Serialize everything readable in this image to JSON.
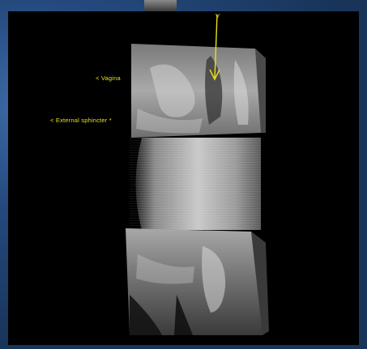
{
  "labels": {
    "vagina": "< Vagina",
    "external_sphincter": "< External sphincter *",
    "arrow_tip": "V"
  },
  "colors": {
    "annotation": "#e6e21a",
    "viewer_background": "#000000",
    "frame_background": "#1f3f6e"
  },
  "icons": {
    "arrow": "down-arrow-icon"
  }
}
